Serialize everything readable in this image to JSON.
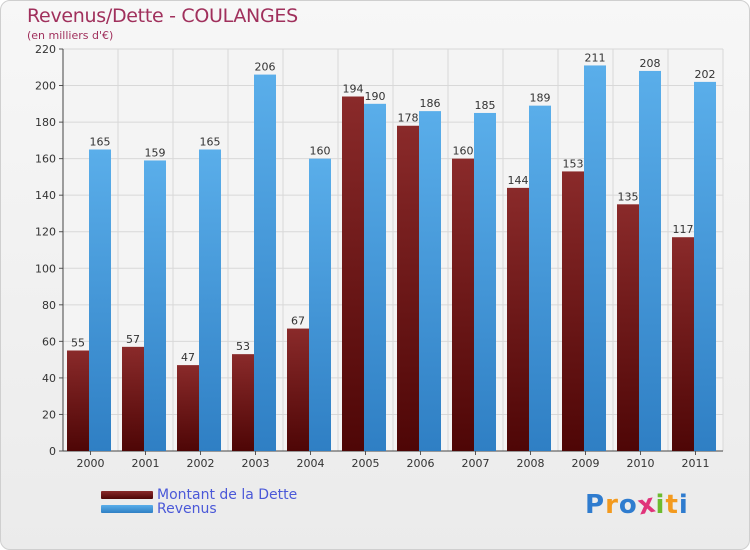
{
  "header": {
    "title": "Revenus/Dette - COULANGES",
    "subtitle": "(en milliers d'€)"
  },
  "chart_data": {
    "type": "bar",
    "title": "Revenus/Dette - COULANGES",
    "subtitle": "(en milliers d'€)",
    "xlabel": "",
    "ylabel": "",
    "categories": [
      "2000",
      "2001",
      "2002",
      "2003",
      "2004",
      "2005",
      "2006",
      "2007",
      "2008",
      "2009",
      "2010",
      "2011"
    ],
    "series": [
      {
        "name": "Montant de la Dette",
        "color": "#7a1f1f",
        "values": [
          55,
          57,
          47,
          53,
          67,
          194,
          178,
          160,
          144,
          153,
          135,
          117
        ]
      },
      {
        "name": "Revenus",
        "color": "#4d9fe0",
        "values": [
          165,
          159,
          165,
          206,
          160,
          190,
          186,
          185,
          189,
          211,
          208,
          202
        ]
      }
    ],
    "ylim": [
      0,
      220
    ],
    "yticks": [
      0,
      20,
      40,
      60,
      80,
      100,
      120,
      140,
      160,
      180,
      200,
      220
    ],
    "grid": true,
    "legend_position": "bottom-left",
    "data_labels": true
  },
  "legend": {
    "items": [
      {
        "label": "Montant de la Dette",
        "color": "#6b1515"
      },
      {
        "label": "Revenus",
        "color": "#4d9fe0"
      }
    ]
  },
  "logo": {
    "letters": [
      "P",
      "r",
      "o",
      "x",
      "i",
      "t",
      "i"
    ],
    "colors": [
      "#2f7ccf",
      "#f39a1e",
      "#2f7ccf",
      "#e0347a",
      "#6dbb2f",
      "#f39a1e",
      "#2f7ccf"
    ]
  }
}
